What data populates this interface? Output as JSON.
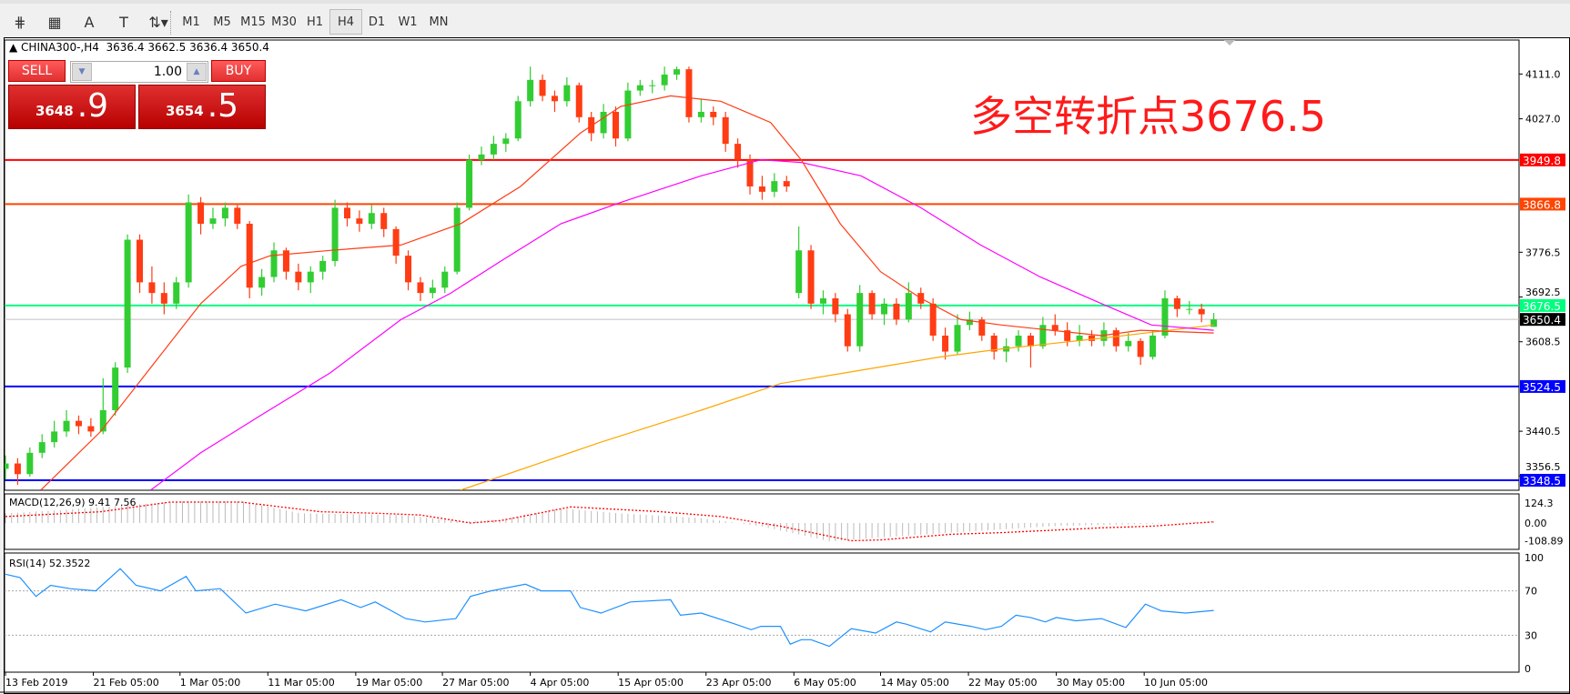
{
  "toolbar": {
    "tools": [
      {
        "name": "crosshair-e-icon",
        "glyph": "⋕"
      },
      {
        "name": "grid-f-icon",
        "glyph": "▦"
      },
      {
        "name": "text-icon",
        "glyph": "A"
      },
      {
        "name": "text-label-icon",
        "glyph": "T"
      },
      {
        "name": "arrows-icon",
        "glyph": "⇅▾"
      }
    ],
    "timeframes": [
      "M1",
      "M5",
      "M15",
      "M30",
      "H1",
      "H4",
      "D1",
      "W1",
      "MN"
    ],
    "active_timeframe": "H4"
  },
  "chart": {
    "header": "CHINA300-,H4  3636.4 3662.5 3636.4 3650.4",
    "annotation": "多空转折点3676.5"
  },
  "trade_panel": {
    "sell_label": "SELL",
    "buy_label": "BUY",
    "lots": "1.00",
    "sell_price_main": "3648",
    "sell_price_frac": ".9",
    "buy_price_main": "3654",
    "buy_price_frac": ".5"
  },
  "chart_data": {
    "type": "candlestick",
    "symbol": "CHINA300-",
    "timeframe": "H4",
    "ylim": [
      3330,
      4175
    ],
    "y_ticks": [
      "4111.0",
      "4027.0",
      "3776.5",
      "3692.5",
      "3608.5",
      "3440.5",
      "3356.5"
    ],
    "colors": {
      "bull": "#32cd32",
      "bear": "#ff3c14",
      "ma_fast": "#ff3c14",
      "ma_mid": "#ff00ff",
      "ma_slow": "#ffa500"
    },
    "hlines": [
      {
        "value": 3949.8,
        "label": "3949.8",
        "color": "#ff0000"
      },
      {
        "value": 3866.8,
        "label": "3866.8",
        "color": "#ff4500"
      },
      {
        "value": 3676.5,
        "label": "3676.5",
        "color": "#00ff7f"
      },
      {
        "value": 3650.4,
        "label": "3650.4",
        "color": "#c0c0c0",
        "label_bg": "#000000"
      },
      {
        "value": 3524.5,
        "label": "3524.5",
        "color": "#0000ff"
      },
      {
        "value": 3348.5,
        "label": "3348.5",
        "color": "#0000ff"
      }
    ],
    "candles": [
      [
        3370,
        3395,
        3350,
        3380
      ],
      [
        3380,
        3390,
        3340,
        3360
      ],
      [
        3360,
        3410,
        3355,
        3400
      ],
      [
        3400,
        3435,
        3390,
        3420
      ],
      [
        3420,
        3460,
        3410,
        3440
      ],
      [
        3440,
        3480,
        3430,
        3460
      ],
      [
        3460,
        3470,
        3435,
        3450
      ],
      [
        3450,
        3465,
        3430,
        3440
      ],
      [
        3440,
        3540,
        3435,
        3480
      ],
      [
        3480,
        3570,
        3470,
        3560
      ],
      [
        3560,
        3810,
        3550,
        3800
      ],
      [
        3800,
        3810,
        3700,
        3720
      ],
      [
        3720,
        3750,
        3680,
        3700
      ],
      [
        3700,
        3720,
        3660,
        3680
      ],
      [
        3680,
        3730,
        3670,
        3720
      ],
      [
        3720,
        3885,
        3710,
        3870
      ],
      [
        3870,
        3880,
        3810,
        3830
      ],
      [
        3830,
        3860,
        3820,
        3840
      ],
      [
        3840,
        3870,
        3825,
        3860
      ],
      [
        3860,
        3865,
        3820,
        3830
      ],
      [
        3830,
        3835,
        3690,
        3710
      ],
      [
        3710,
        3745,
        3695,
        3730
      ],
      [
        3730,
        3795,
        3720,
        3780
      ],
      [
        3780,
        3785,
        3725,
        3740
      ],
      [
        3740,
        3755,
        3705,
        3720
      ],
      [
        3720,
        3750,
        3700,
        3740
      ],
      [
        3740,
        3770,
        3725,
        3760
      ],
      [
        3760,
        3875,
        3750,
        3860
      ],
      [
        3860,
        3870,
        3825,
        3840
      ],
      [
        3840,
        3855,
        3815,
        3830
      ],
      [
        3830,
        3865,
        3820,
        3850
      ],
      [
        3850,
        3860,
        3805,
        3820
      ],
      [
        3820,
        3825,
        3755,
        3770
      ],
      [
        3770,
        3780,
        3705,
        3720
      ],
      [
        3720,
        3730,
        3685,
        3700
      ],
      [
        3700,
        3725,
        3690,
        3710
      ],
      [
        3710,
        3750,
        3700,
        3740
      ],
      [
        3740,
        3870,
        3735,
        3860
      ],
      [
        3860,
        3960,
        3855,
        3950
      ],
      [
        3950,
        3975,
        3940,
        3960
      ],
      [
        3960,
        3995,
        3950,
        3980
      ],
      [
        3980,
        4000,
        3965,
        3990
      ],
      [
        3990,
        4070,
        3985,
        4060
      ],
      [
        4060,
        4125,
        4050,
        4100
      ],
      [
        4100,
        4110,
        4060,
        4070
      ],
      [
        4070,
        4080,
        4040,
        4060
      ],
      [
        4060,
        4105,
        4050,
        4090
      ],
      [
        4090,
        4095,
        4020,
        4030
      ],
      [
        4030,
        4040,
        3985,
        4000
      ],
      [
        4000,
        4055,
        3990,
        4040
      ],
      [
        4040,
        4050,
        3975,
        3990
      ],
      [
        3990,
        4095,
        3985,
        4080
      ],
      [
        4080,
        4100,
        4070,
        4090
      ],
      [
        4090,
        4100,
        4075,
        4090
      ],
      [
        4090,
        4125,
        4080,
        4110
      ],
      [
        4110,
        4125,
        4100,
        4120
      ],
      [
        4120,
        4125,
        4020,
        4030
      ],
      [
        4030,
        4065,
        4020,
        4040
      ],
      [
        4040,
        4050,
        4015,
        4030
      ],
      [
        4030,
        4040,
        3965,
        3980
      ],
      [
        3980,
        3990,
        3935,
        3950
      ],
      [
        3950,
        3960,
        3885,
        3900
      ],
      [
        3900,
        3920,
        3875,
        3890
      ],
      [
        3890,
        3925,
        3880,
        3910
      ],
      [
        3910,
        3920,
        3890,
        3900
      ],
      [
        3700,
        3825,
        3690,
        3780
      ],
      [
        3780,
        3790,
        3670,
        3680
      ],
      [
        3680,
        3705,
        3660,
        3690
      ],
      [
        3690,
        3700,
        3645,
        3660
      ],
      [
        3660,
        3670,
        3590,
        3600
      ],
      [
        3600,
        3715,
        3590,
        3700
      ],
      [
        3700,
        3705,
        3650,
        3660
      ],
      [
        3660,
        3690,
        3640,
        3680
      ],
      [
        3680,
        3690,
        3640,
        3650
      ],
      [
        3650,
        3720,
        3645,
        3700
      ],
      [
        3700,
        3710,
        3670,
        3680
      ],
      [
        3680,
        3690,
        3610,
        3620
      ],
      [
        3620,
        3635,
        3575,
        3590
      ],
      [
        3590,
        3660,
        3585,
        3640
      ],
      [
        3640,
        3665,
        3630,
        3650
      ],
      [
        3650,
        3655,
        3610,
        3620
      ],
      [
        3620,
        3625,
        3575,
        3590
      ],
      [
        3590,
        3615,
        3570,
        3600
      ],
      [
        3600,
        3630,
        3590,
        3620
      ],
      [
        3620,
        3625,
        3560,
        3600
      ],
      [
        3600,
        3655,
        3595,
        3640
      ],
      [
        3640,
        3660,
        3620,
        3630
      ],
      [
        3630,
        3645,
        3600,
        3610
      ],
      [
        3610,
        3640,
        3600,
        3620
      ],
      [
        3620,
        3630,
        3600,
        3610
      ],
      [
        3610,
        3645,
        3600,
        3630
      ],
      [
        3630,
        3635,
        3590,
        3600
      ],
      [
        3600,
        3625,
        3590,
        3610
      ],
      [
        3610,
        3615,
        3565,
        3580
      ],
      [
        3580,
        3630,
        3575,
        3620
      ],
      [
        3620,
        3705,
        3615,
        3690
      ],
      [
        3690,
        3695,
        3655,
        3670
      ],
      [
        3670,
        3685,
        3660,
        3670
      ],
      [
        3670,
        3680,
        3645,
        3660
      ],
      [
        3636.4,
        3662.5,
        3636.4,
        3650.4
      ]
    ],
    "ma_fast": [
      [
        2.9,
        3330
      ],
      [
        7.8,
        3440
      ],
      [
        11.9,
        3560
      ],
      [
        16,
        3680
      ],
      [
        19.3,
        3750
      ],
      [
        21.7,
        3770
      ],
      [
        26.6,
        3780
      ],
      [
        32.4,
        3790
      ],
      [
        37.3,
        3830
      ],
      [
        42.2,
        3900
      ],
      [
        47.1,
        4000
      ],
      [
        50.4,
        4050
      ],
      [
        54.5,
        4070
      ],
      [
        58.6,
        4060
      ],
      [
        62.7,
        4020
      ],
      [
        65.2,
        3950
      ],
      [
        68.4,
        3830
      ],
      [
        71.7,
        3740
      ],
      [
        75,
        3690
      ],
      [
        78.3,
        3650
      ],
      [
        81.6,
        3640
      ],
      [
        85.7,
        3630
      ],
      [
        89.8,
        3620
      ],
      [
        93,
        3630
      ],
      [
        99,
        3625
      ]
    ],
    "ma_mid": [
      [
        11.9,
        3330
      ],
      [
        16,
        3400
      ],
      [
        20.9,
        3470
      ],
      [
        26.6,
        3550
      ],
      [
        32.4,
        3650
      ],
      [
        36.5,
        3700
      ],
      [
        40.6,
        3760
      ],
      [
        45.5,
        3830
      ],
      [
        50.4,
        3870
      ],
      [
        57,
        3920
      ],
      [
        61.9,
        3950
      ],
      [
        65.2,
        3945
      ],
      [
        70.1,
        3920
      ],
      [
        75,
        3860
      ],
      [
        79.9,
        3790
      ],
      [
        84.8,
        3730
      ],
      [
        89.8,
        3680
      ],
      [
        93.9,
        3640
      ],
      [
        99,
        3630
      ]
    ],
    "ma_slow": [
      [
        37.3,
        3330
      ],
      [
        48.8,
        3420
      ],
      [
        57,
        3480
      ],
      [
        63.5,
        3530
      ],
      [
        70.1,
        3555
      ],
      [
        76.6,
        3580
      ],
      [
        81.6,
        3595
      ],
      [
        89.8,
        3615
      ],
      [
        99,
        3640
      ]
    ],
    "macd": {
      "label": "MACD(12,26,9) 9.41 7.56",
      "ylim": [
        -125,
        140
      ],
      "ticks": [
        "124.3",
        "0.00",
        "-108.89"
      ],
      "tick_values": [
        124.3,
        0,
        -108.89
      ],
      "histogram": [
        [
          0,
          60
        ],
        [
          4.5,
          80
        ],
        [
          14.3,
          135
        ],
        [
          19.3,
          135
        ],
        [
          24.2,
          60
        ],
        [
          32.4,
          50
        ],
        [
          37.3,
          10
        ],
        [
          40.6,
          20
        ],
        [
          45.5,
          90
        ],
        [
          50.4,
          60
        ],
        [
          57,
          30
        ],
        [
          61.9,
          -20
        ],
        [
          67.6,
          -115
        ],
        [
          71.7,
          -90
        ],
        [
          77.5,
          -60
        ],
        [
          81.6,
          -40
        ],
        [
          85.7,
          -20
        ],
        [
          93.9,
          -5
        ],
        [
          99,
          9.41
        ]
      ],
      "signal": [
        [
          0,
          40
        ],
        [
          7.8,
          70
        ],
        [
          13.5,
          130
        ],
        [
          19.3,
          130
        ],
        [
          25.8,
          70
        ],
        [
          30.7,
          60
        ],
        [
          34,
          50
        ],
        [
          38.1,
          0
        ],
        [
          40.6,
          15
        ],
        [
          46.3,
          100
        ],
        [
          53.7,
          70
        ],
        [
          58.6,
          40
        ],
        [
          63.5,
          -20
        ],
        [
          69.3,
          -110
        ],
        [
          71.7,
          -105
        ],
        [
          77.5,
          -70
        ],
        [
          81.6,
          -60
        ],
        [
          85.7,
          -45
        ],
        [
          89.8,
          -30
        ],
        [
          93.9,
          -20
        ],
        [
          99,
          7.56
        ]
      ]
    },
    "rsi": {
      "label": "RSI(14) 52.3522",
      "ylim": [
        0,
        100
      ],
      "ticks": [
        "100",
        "70",
        "30",
        "0"
      ],
      "tick_values": [
        100,
        70,
        30,
        0
      ],
      "levels": [
        70,
        30
      ],
      "color": "#1e90ff",
      "values": [
        [
          0,
          85
        ],
        [
          1.2,
          82
        ],
        [
          2.5,
          65
        ],
        [
          3.7,
          75
        ],
        [
          5.3,
          72
        ],
        [
          7.4,
          70
        ],
        [
          9.4,
          90
        ],
        [
          10.7,
          75
        ],
        [
          12.7,
          70
        ],
        [
          14.8,
          83
        ],
        [
          15.6,
          70
        ],
        [
          17.6,
          72
        ],
        [
          19.7,
          50
        ],
        [
          22.1,
          58
        ],
        [
          24.6,
          52
        ],
        [
          27.5,
          62
        ],
        [
          29.1,
          55
        ],
        [
          30.3,
          60
        ],
        [
          32.8,
          45
        ],
        [
          34.4,
          42
        ],
        [
          36.9,
          45
        ],
        [
          38.1,
          65
        ],
        [
          39.8,
          70
        ],
        [
          42.6,
          76
        ],
        [
          43.9,
          70
        ],
        [
          46.3,
          70
        ],
        [
          47.1,
          55
        ],
        [
          48.8,
          50
        ],
        [
          51.2,
          60
        ],
        [
          54.5,
          62
        ],
        [
          55.3,
          48
        ],
        [
          57,
          50
        ],
        [
          59.8,
          40
        ],
        [
          61.1,
          35
        ],
        [
          61.9,
          38
        ],
        [
          63.5,
          38
        ],
        [
          64.3,
          22
        ],
        [
          65.2,
          26
        ],
        [
          66,
          26
        ],
        [
          67.5,
          20
        ],
        [
          69.3,
          36
        ],
        [
          71.3,
          32
        ],
        [
          73,
          42
        ],
        [
          73.8,
          40
        ],
        [
          75.8,
          33
        ],
        [
          77,
          42
        ],
        [
          79.1,
          38
        ],
        [
          80.3,
          35
        ],
        [
          81.6,
          38
        ],
        [
          82.8,
          48
        ],
        [
          84,
          46
        ],
        [
          85.2,
          42
        ],
        [
          86.1,
          46
        ],
        [
          87.7,
          43
        ],
        [
          89.8,
          45
        ],
        [
          91.8,
          37
        ],
        [
          93.4,
          58
        ],
        [
          94.7,
          52
        ],
        [
          96.7,
          50
        ],
        [
          99,
          52.35
        ]
      ]
    },
    "x_labels": [
      {
        "i": 0,
        "text": "13 Feb 2019"
      },
      {
        "i": 7.2,
        "text": "21 Feb 05:00"
      },
      {
        "i": 14.3,
        "text": "1 Mar 05:00"
      },
      {
        "i": 21.5,
        "text": "11 Mar 05:00"
      },
      {
        "i": 28.7,
        "text": "19 Mar 05:00"
      },
      {
        "i": 35.8,
        "text": "27 Mar 05:00"
      },
      {
        "i": 43,
        "text": "4 Apr 05:00"
      },
      {
        "i": 50.2,
        "text": "15 Apr 05:00"
      },
      {
        "i": 57.4,
        "text": "23 Apr 05:00"
      },
      {
        "i": 64.6,
        "text": "6 May 05:00"
      },
      {
        "i": 71.7,
        "text": "14 May 05:00"
      },
      {
        "i": 78.9,
        "text": "22 May 05:00"
      },
      {
        "i": 86.1,
        "text": "30 May 05:00"
      },
      {
        "i": 93.3,
        "text": "10 Jun 05:00"
      }
    ]
  }
}
